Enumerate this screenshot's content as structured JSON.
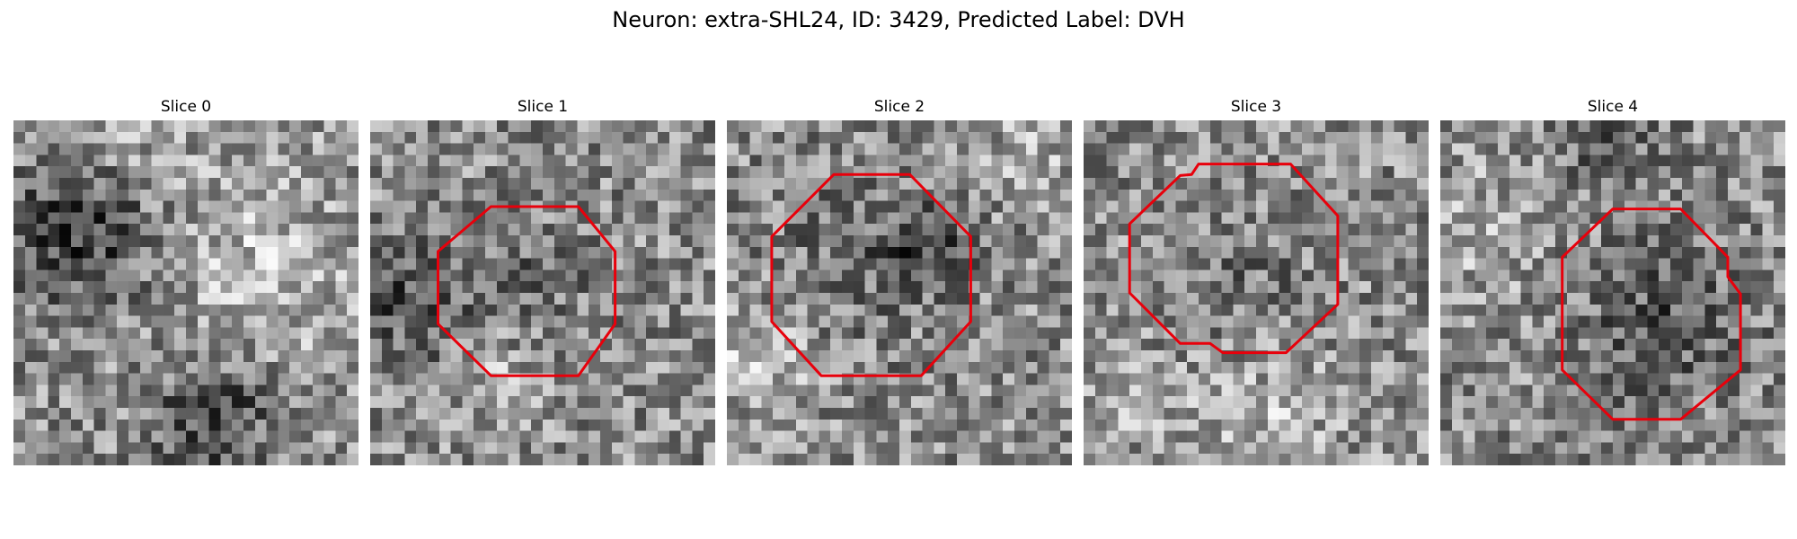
{
  "figure": {
    "title": "Neuron: extra-SHL24, ID: 3429, Predicted Label: DVH",
    "grid_size": 30,
    "roi_color": "#e8000b",
    "colormap": "gray",
    "panels": [
      {
        "title": "Slice 0",
        "roi": [],
        "dark_blobs": [
          [
            6,
            9,
            5,
            1.0
          ],
          [
            17,
            25,
            4,
            0.9
          ]
        ],
        "light_blobs": [
          [
            20,
            13,
            8,
            0.5
          ],
          [
            8,
            2,
            4,
            0.4
          ]
        ]
      },
      {
        "title": "Slice 1",
        "roi": [
          [
            10.5,
            7.5
          ],
          [
            18.1,
            7.5
          ],
          [
            21.3,
            11.4
          ],
          [
            21.3,
            17.7
          ],
          [
            18.1,
            22.2
          ],
          [
            10.5,
            22.2
          ],
          [
            5.9,
            17.7
          ],
          [
            5.9,
            11.4
          ]
        ],
        "dark_blobs": [
          [
            3,
            15,
            4,
            0.7
          ],
          [
            14,
            13,
            4,
            0.3
          ]
        ],
        "light_blobs": [
          [
            10,
            22,
            3,
            0.4
          ]
        ]
      },
      {
        "title": "Slice 2",
        "roi": [
          [
            9.3,
            4.7
          ],
          [
            15.9,
            4.7
          ],
          [
            21.2,
            10.1
          ],
          [
            21.2,
            17.5
          ],
          [
            16.9,
            22.2
          ],
          [
            8.2,
            22.2
          ],
          [
            3.9,
            17.5
          ],
          [
            3.9,
            10.1
          ]
        ],
        "dark_blobs": [
          [
            17,
            10,
            2.5,
            0.8
          ],
          [
            10,
            12,
            5,
            0.35
          ]
        ],
        "light_blobs": [
          [
            2,
            20,
            4,
            0.5
          ],
          [
            26,
            2,
            3,
            0.4
          ]
        ]
      },
      {
        "title": "Slice 3",
        "roi": [
          [
            10.0,
            3.8
          ],
          [
            18.0,
            3.8
          ],
          [
            22.1,
            8.3
          ],
          [
            22.1,
            16.0
          ],
          [
            17.6,
            20.2
          ],
          [
            12.1,
            20.2
          ],
          [
            11.0,
            19.4
          ],
          [
            8.4,
            19.4
          ],
          [
            4.0,
            15.0
          ],
          [
            4.0,
            9.0
          ],
          [
            8.4,
            4.8
          ],
          [
            9.4,
            4.7
          ]
        ],
        "dark_blobs": [
          [
            13,
            14,
            4,
            0.3
          ]
        ],
        "light_blobs": [
          [
            15,
            26,
            5,
            0.45
          ],
          [
            3,
            24,
            3,
            0.3
          ]
        ]
      },
      {
        "title": "Slice 4",
        "roi": [
          [
            15.0,
            7.7
          ],
          [
            20.9,
            7.7
          ],
          [
            25.0,
            11.9
          ],
          [
            25.0,
            13.6
          ],
          [
            26.1,
            15.1
          ],
          [
            26.1,
            21.7
          ],
          [
            20.9,
            26.0
          ],
          [
            15.0,
            26.0
          ],
          [
            10.6,
            21.7
          ],
          [
            10.6,
            11.9
          ]
        ],
        "dark_blobs": [
          [
            19,
            17,
            5,
            0.6
          ],
          [
            14,
            0,
            3,
            0.6
          ]
        ],
        "light_blobs": [
          [
            3,
            9,
            4,
            0.4
          ]
        ]
      }
    ]
  }
}
